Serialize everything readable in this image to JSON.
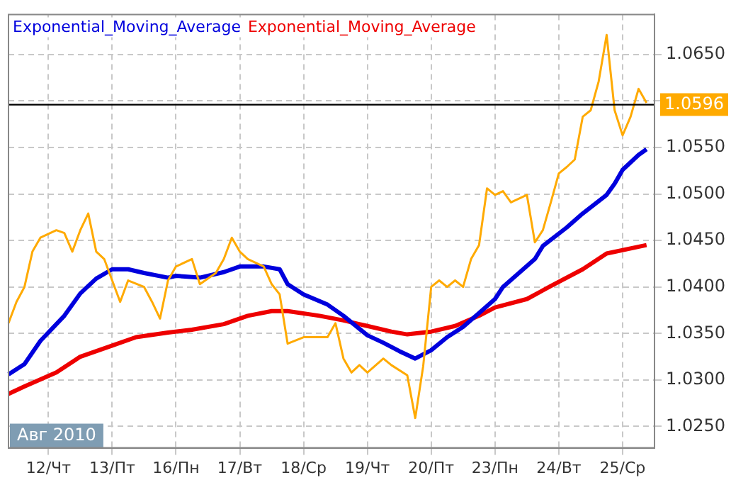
{
  "chart_data": {
    "type": "line",
    "ylim": [
      1.0227,
      1.0693
    ],
    "categories": [
      null,
      null,
      null,
      null,
      null,
      "12/Чт",
      null,
      null,
      null,
      null,
      null,
      null,
      null,
      "13/Пт",
      null,
      null,
      null,
      null,
      null,
      null,
      null,
      "16/Пн",
      null,
      null,
      null,
      null,
      null,
      null,
      null,
      "17/Вт",
      null,
      null,
      null,
      null,
      null,
      null,
      null,
      "18/Ср",
      null,
      null,
      null,
      null,
      null,
      null,
      null,
      "19/Чт",
      null,
      null,
      null,
      null,
      null,
      null,
      null,
      "20/Пт",
      null,
      null,
      null,
      null,
      null,
      null,
      null,
      "23/Пн",
      null,
      null,
      null,
      null,
      null,
      null,
      null,
      "24/Вт",
      null,
      null,
      null,
      null,
      null,
      null,
      null,
      "25/Ср",
      null,
      null,
      null,
      null
    ],
    "yticks": [
      {
        "value": 1.025,
        "label": "1.0250"
      },
      {
        "value": 1.03,
        "label": "1.0300"
      },
      {
        "value": 1.035,
        "label": "1.0350"
      },
      {
        "value": 1.04,
        "label": "1.0400"
      },
      {
        "value": 1.045,
        "label": "1.0450"
      },
      {
        "value": 1.05,
        "label": "1.0500"
      },
      {
        "value": 1.055,
        "label": "1.0550"
      },
      {
        "value": 1.06,
        "label": null
      },
      {
        "value": 1.065,
        "label": "1.0650"
      }
    ],
    "grid": true,
    "marker": "none",
    "line_style": "solid",
    "ref_lines": [
      {
        "axis": "y",
        "value": 1.0596,
        "label": "1.0596",
        "color": "#000000"
      }
    ],
    "annotations": [
      "Авг 2010"
    ],
    "series": [
      {
        "color": "#ffaa00",
        "values": [
          1.0361,
          1.0384,
          1.04,
          1.0438,
          1.0453,
          null,
          1.0461,
          1.0458,
          1.0438,
          1.0461,
          1.0479,
          1.0438,
          1.043,
          null,
          1.0384,
          1.0407,
          null,
          1.04,
          1.0384,
          1.0366,
          1.0407,
          1.0422,
          null,
          1.043,
          1.0403,
          null,
          1.0415,
          1.043,
          1.0453,
          1.0438,
          1.043,
          null,
          1.0422,
          1.0403,
          1.0392,
          1.0339,
          null,
          1.0346,
          null,
          null,
          1.0346,
          1.0361,
          1.0323,
          1.0308,
          1.0316,
          1.0308,
          null,
          1.0323,
          1.0316,
          null,
          1.0305,
          1.0259,
          1.0315,
          1.04,
          1.0407,
          1.04,
          1.0407,
          1.04,
          1.043,
          1.0445,
          1.0506,
          1.0499,
          1.0503,
          1.0491,
          null,
          1.0499,
          1.0448,
          1.0461,
          1.0491,
          1.0522,
          1.0529,
          1.0537,
          1.0583,
          1.059,
          1.0621,
          1.0671,
          1.059,
          1.0563,
          1.0583,
          1.0613,
          1.0598,
          null
        ]
      },
      {
        "name": "Exponential_Moving_Average",
        "color": "#0000dd",
        "values": [
          1.0306,
          null,
          1.0317,
          null,
          1.0342,
          null,
          null,
          1.0369,
          null,
          1.0393,
          null,
          1.0409,
          null,
          1.0419,
          null,
          1.0419,
          null,
          1.0415,
          null,
          null,
          1.041,
          1.0412,
          null,
          null,
          1.041,
          null,
          null,
          1.0416,
          null,
          1.0422,
          null,
          null,
          1.0422,
          null,
          1.0419,
          1.0403,
          null,
          1.0392,
          null,
          null,
          1.0381,
          null,
          1.0369,
          null,
          null,
          1.0348,
          null,
          1.034,
          null,
          1.0331,
          null,
          1.0323,
          null,
          1.0332,
          null,
          1.0346,
          null,
          1.0357,
          null,
          1.0372,
          null,
          1.0387,
          1.04,
          null,
          1.0415,
          null,
          1.043,
          1.0444,
          null,
          null,
          1.0464,
          null,
          1.0479,
          null,
          null,
          1.0499,
          1.0511,
          1.0526,
          null,
          1.0542,
          1.0548,
          null
        ]
      },
      {
        "name": "Exponential_Moving_Average",
        "color": "#ee0000",
        "values": [
          1.0285,
          null,
          1.0293,
          null,
          null,
          null,
          1.0308,
          null,
          null,
          1.0325,
          null,
          null,
          null,
          1.0337,
          null,
          null,
          1.0346,
          null,
          null,
          null,
          1.0351,
          null,
          null,
          1.0354,
          null,
          null,
          null,
          1.036,
          null,
          null,
          1.0369,
          null,
          null,
          1.0374,
          null,
          1.0374,
          null,
          null,
          null,
          1.0369,
          null,
          null,
          1.0364,
          null,
          null,
          1.0358,
          null,
          null,
          1.0352,
          null,
          1.0349,
          null,
          null,
          1.0352,
          null,
          null,
          1.0358,
          null,
          null,
          1.0369,
          null,
          1.0378,
          null,
          null,
          null,
          1.0387,
          null,
          null,
          1.0401,
          null,
          null,
          null,
          1.0419,
          null,
          null,
          1.0436,
          null,
          null,
          null,
          null,
          1.0445,
          null
        ]
      }
    ]
  }
}
